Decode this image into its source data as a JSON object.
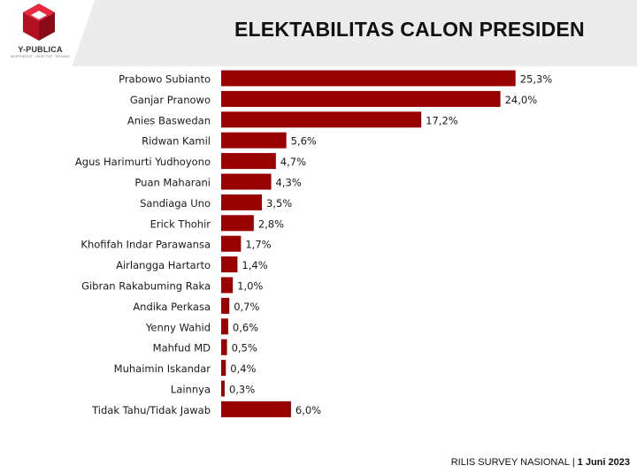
{
  "header": {
    "logo_name": "Y-PUBLICA",
    "logo_tagline": "INDEPENDENT · OBJECTIVE · RELIABLE",
    "title": "ELEKTABILITAS CALON PRESIDEN",
    "colors": {
      "header_bg": "#ececec",
      "logo_red": "#c8102e"
    }
  },
  "footer": {
    "release": "RILIS SURVEY NASIONAL",
    "separator": "|",
    "date": "1 Juni 2023"
  },
  "chart_data": {
    "type": "bar",
    "orientation": "horizontal",
    "title": "ELEKTABILITAS CALON PRESIDEN",
    "bar_color": "#990000",
    "grid": false,
    "categories": [
      "Prabowo Subianto",
      "Ganjar Pranowo",
      "Anies Baswedan",
      "Ridwan Kamil",
      "Agus Harimurti Yudhoyono",
      "Puan Maharani",
      "Sandiaga Uno",
      "Erick Thohir",
      "Khofifah Indar Parawansa",
      "Airlangga Hartarto",
      "Gibran Rakabuming Raka",
      "Andika Perkasa",
      "Yenny Wahid",
      "Mahfud MD",
      "Muhaimin Iskandar",
      "Lainnya",
      "Tidak Tahu/Tidak Jawab"
    ],
    "values": [
      25.3,
      24.0,
      17.2,
      5.6,
      4.7,
      4.3,
      3.5,
      2.8,
      1.7,
      1.4,
      1.0,
      0.7,
      0.6,
      0.5,
      0.4,
      0.3,
      6.0
    ],
    "value_labels": [
      "25,3%",
      "24,0%",
      "17,2%",
      "5,6%",
      "4,7%",
      "4,3%",
      "3,5%",
      "2,8%",
      "1,7%",
      "1,4%",
      "1,0%",
      "0,7%",
      "0,6%",
      "0,5%",
      "0,4%",
      "0,3%",
      "6,0%"
    ],
    "unit": "%"
  }
}
